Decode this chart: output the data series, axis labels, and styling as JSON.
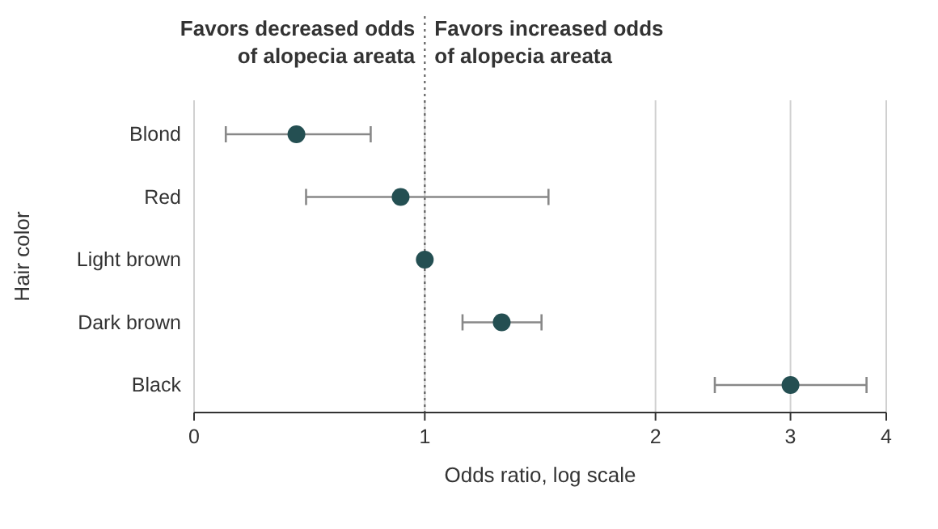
{
  "chart_data": {
    "type": "scatter",
    "xlabel": "Odds ratio, log scale",
    "ylabel": "Hair color",
    "categories": [
      "Blond",
      "Red",
      "Light brown",
      "Dark brown",
      "Black"
    ],
    "orientation": "horizontal",
    "series": [
      {
        "color": "#244f52",
        "values": [
          0.68,
          0.93,
          1,
          1.26,
          3.0
        ],
        "errors": [
          [
            0.55,
            0.85
          ],
          [
            0.7,
            1.45
          ],
          null,
          [
            1.12,
            1.42
          ],
          [
            2.39,
            3.77
          ]
        ]
      }
    ],
    "log": "x",
    "xlim": [
      0.5,
      4
    ],
    "xticks": [
      {
        "value": 0.5,
        "label": "0"
      },
      1,
      2,
      3,
      4
    ],
    "grid": "x",
    "marker": "circle",
    "ref_lines": [
      {
        "axis": "x",
        "value": 1,
        "line_style": "dotted",
        "color": "#555555"
      }
    ],
    "annotations": [
      "Favors decreased odds\nof alopecia areata",
      "Favors increased odds\nof alopecia areata"
    ]
  }
}
